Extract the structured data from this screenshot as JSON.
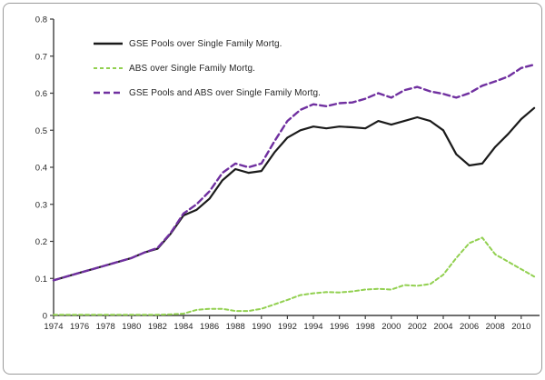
{
  "chart_data": {
    "type": "line",
    "title": "",
    "xlabel": "",
    "ylabel": "",
    "grid": false,
    "legend_position": "inside-upper-left",
    "xlim": [
      1974,
      2011.5
    ],
    "ylim": [
      0,
      0.8
    ],
    "x": [
      1974,
      1975,
      1976,
      1977,
      1978,
      1979,
      1980,
      1981,
      1982,
      1983,
      1984,
      1985,
      1986,
      1987,
      1988,
      1989,
      1990,
      1991,
      1992,
      1993,
      1994,
      1995,
      1996,
      1997,
      1998,
      1999,
      2000,
      2001,
      2002,
      2003,
      2004,
      2005,
      2006,
      2007,
      2008,
      2009,
      2010,
      2011
    ],
    "x_tick_labels": [
      "1974",
      "1976",
      "1978",
      "1980",
      "1982",
      "1984",
      "1986",
      "1988",
      "1990",
      "1992",
      "1994",
      "1996",
      "1998",
      "2000",
      "2002",
      "2004",
      "2006",
      "2008",
      "2010"
    ],
    "x_tick_years": [
      1974,
      1976,
      1978,
      1980,
      1982,
      1984,
      1986,
      1988,
      1990,
      1992,
      1994,
      1996,
      1998,
      2000,
      2002,
      2004,
      2006,
      2008,
      2010
    ],
    "y_ticks": [
      0,
      0.1,
      0.2,
      0.3,
      0.4,
      0.5,
      0.6,
      0.7,
      0.8
    ],
    "y_tick_labels": [
      "0",
      "0.1",
      "0.2",
      "0.3",
      "0.4",
      "0.5",
      "0.6",
      "0.7",
      "0.8"
    ],
    "series": [
      {
        "name": "GSE Pools over Single Family Mortg.",
        "color": "#1a1a1a",
        "style": "solid",
        "values": [
          0.095,
          0.105,
          0.115,
          0.125,
          0.135,
          0.145,
          0.155,
          0.17,
          0.18,
          0.22,
          0.27,
          0.285,
          0.315,
          0.365,
          0.395,
          0.385,
          0.39,
          0.44,
          0.48,
          0.5,
          0.51,
          0.505,
          0.51,
          0.508,
          0.505,
          0.525,
          0.515,
          0.525,
          0.535,
          0.525,
          0.5,
          0.435,
          0.405,
          0.41,
          0.455,
          0.49,
          0.53,
          0.56
        ]
      },
      {
        "name": "ABS over Single Family Mortg.",
        "color": "#92d050",
        "style": "short-dash",
        "values": [
          0.002,
          0.002,
          0.002,
          0.002,
          0.002,
          0.002,
          0.002,
          0.002,
          0.002,
          0.003,
          0.005,
          0.015,
          0.018,
          0.018,
          0.012,
          0.012,
          0.018,
          0.03,
          0.042,
          0.055,
          0.06,
          0.063,
          0.062,
          0.065,
          0.07,
          0.072,
          0.07,
          0.082,
          0.08,
          0.085,
          0.11,
          0.155,
          0.195,
          0.21,
          0.165,
          0.145,
          0.125,
          0.105
        ]
      },
      {
        "name": "GSE Pools and ABS over Single Family Mortg.",
        "color": "#7030a0",
        "style": "long-dash",
        "values": [
          0.095,
          0.105,
          0.115,
          0.125,
          0.135,
          0.145,
          0.155,
          0.17,
          0.182,
          0.222,
          0.275,
          0.3,
          0.335,
          0.385,
          0.41,
          0.4,
          0.41,
          0.47,
          0.525,
          0.555,
          0.57,
          0.565,
          0.573,
          0.575,
          0.585,
          0.6,
          0.588,
          0.608,
          0.617,
          0.605,
          0.598,
          0.588,
          0.6,
          0.62,
          0.632,
          0.645,
          0.668,
          0.677
        ]
      }
    ],
    "axis_color": "#3f3f3f"
  }
}
